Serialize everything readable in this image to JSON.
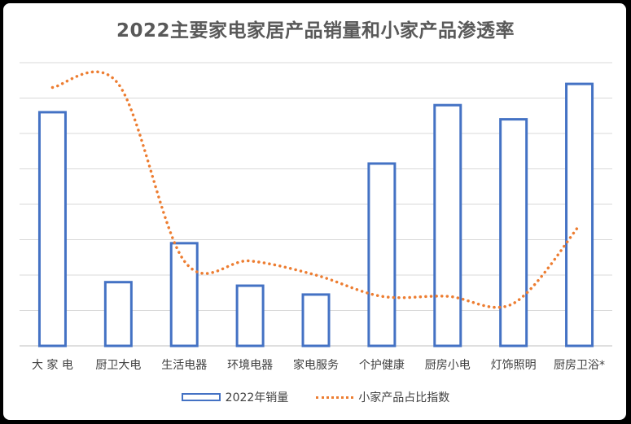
{
  "chart_data": {
    "type": "bar",
    "title": "2022主要家电家居产品销量和小家产品渗透率",
    "categories": [
      "大 家 电",
      "厨卫大电",
      "生活电器",
      "环境电器",
      "家电服务",
      "个护健康",
      "厨房小电",
      "灯饰照明",
      "厨房卫浴*"
    ],
    "series": [
      {
        "name": "2022年销量",
        "type": "bar",
        "color": "#4472c4",
        "values": [
          6.6,
          1.8,
          2.9,
          1.7,
          1.45,
          5.15,
          6.8,
          6.4,
          7.4
        ]
      },
      {
        "name": "小家产品占比指数",
        "type": "line",
        "style": "dotted",
        "color": "#ed7d31",
        "values": [
          7.3,
          7.4,
          2.4,
          2.4,
          2.0,
          1.4,
          1.4,
          1.2,
          3.4
        ]
      }
    ],
    "ylim": [
      0,
      8
    ],
    "gridlines": 8,
    "y_tick_labels_shown": false,
    "legend_position": "bottom"
  }
}
